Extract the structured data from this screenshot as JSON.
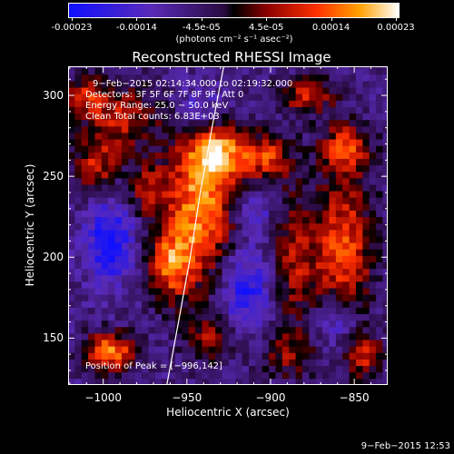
{
  "colorbar": {
    "ticks": [
      "-0.00023",
      "-0.00014",
      "-4.5e-05",
      "4.5e-05",
      "0.00014",
      "0.00023"
    ],
    "unit": "(photons cm⁻² s⁻¹ asec⁻²)",
    "range": [
      -0.00023,
      0.00023
    ]
  },
  "chart_data": {
    "type": "heatmap",
    "title": "Reconstructed RHESSI Image",
    "xlabel": "Heliocentric X (arcsec)",
    "ylabel": "Heliocentric Y (arcsec)",
    "xlim": [
      -1021,
      -830
    ],
    "ylim": [
      121,
      318
    ],
    "xticks": [
      {
        "value": -1000,
        "label": "−1000"
      },
      {
        "value": -950,
        "label": "−950"
      },
      {
        "value": -900,
        "label": "−900"
      },
      {
        "value": -850,
        "label": "−850"
      }
    ],
    "yticks": [
      {
        "value": 150,
        "label": "150"
      },
      {
        "value": 200,
        "label": "200"
      },
      {
        "value": 250,
        "label": "250"
      },
      {
        "value": 300,
        "label": "300"
      }
    ],
    "annotations": [
      "9−Feb−2015 02:14:34.000 to 02:19:32.000",
      "Detectors: 3F 5F 6F 7F 8F 9F, Att 0",
      "Energy Range: 25.0 − 50.0 keV",
      "Clean     Total counts: 6.83E+03"
    ],
    "peak_label": "Position of Peak = [−996,142]",
    "peak": [
      -996,
      142
    ],
    "grid": false,
    "legend": "none",
    "sources": [
      {
        "x": -942,
        "y": 232,
        "amp": 1.0,
        "sx": 14,
        "sy": 34
      },
      {
        "x": -930,
        "y": 265,
        "amp": 0.85,
        "sx": 12,
        "sy": 12
      },
      {
        "x": -960,
        "y": 196,
        "amp": 0.75,
        "sx": 9,
        "sy": 16
      },
      {
        "x": -996,
        "y": 142,
        "amp": 1.0,
        "sx": 10,
        "sy": 8
      },
      {
        "x": -856,
        "y": 206,
        "amp": 0.8,
        "sx": 12,
        "sy": 32
      },
      {
        "x": -855,
        "y": 268,
        "amp": 0.75,
        "sx": 10,
        "sy": 10
      },
      {
        "x": -902,
        "y": 262,
        "amp": 0.7,
        "sx": 10,
        "sy": 10
      },
      {
        "x": -886,
        "y": 198,
        "amp": 0.55,
        "sx": 10,
        "sy": 30
      },
      {
        "x": -990,
        "y": 286,
        "amp": 0.6,
        "sx": 16,
        "sy": 14
      },
      {
        "x": -1004,
        "y": 256,
        "amp": 0.6,
        "sx": 9,
        "sy": 12
      },
      {
        "x": -1010,
        "y": 300,
        "amp": 0.55,
        "sx": 8,
        "sy": 8
      },
      {
        "x": -878,
        "y": 300,
        "amp": 0.6,
        "sx": 12,
        "sy": 8
      },
      {
        "x": -935,
        "y": 150,
        "amp": 0.5,
        "sx": 10,
        "sy": 10
      },
      {
        "x": -890,
        "y": 140,
        "amp": 0.4,
        "sx": 12,
        "sy": 10
      },
      {
        "x": -845,
        "y": 140,
        "amp": 0.65,
        "sx": 8,
        "sy": 10
      },
      {
        "x": -973,
        "y": 242,
        "amp": 0.55,
        "sx": 8,
        "sy": 12
      },
      {
        "x": -996,
        "y": 210,
        "amp": -0.7,
        "sx": 10,
        "sy": 18
      },
      {
        "x": -915,
        "y": 180,
        "amp": -0.6,
        "sx": 12,
        "sy": 18
      },
      {
        "x": -942,
        "y": 290,
        "amp": -0.5,
        "sx": 10,
        "sy": 12
      },
      {
        "x": -860,
        "y": 160,
        "amp": -0.5,
        "sx": 10,
        "sy": 12
      },
      {
        "x": -910,
        "y": 228,
        "amp": -0.4,
        "sx": 8,
        "sy": 10
      }
    ],
    "limb_curve": [
      {
        "x": -962,
        "y": 121
      },
      {
        "x": -955,
        "y": 160
      },
      {
        "x": -948,
        "y": 200
      },
      {
        "x": -942,
        "y": 240
      },
      {
        "x": -935,
        "y": 280
      },
      {
        "x": -928,
        "y": 318
      }
    ]
  },
  "timestamp": "9−Feb−2015 12:53"
}
